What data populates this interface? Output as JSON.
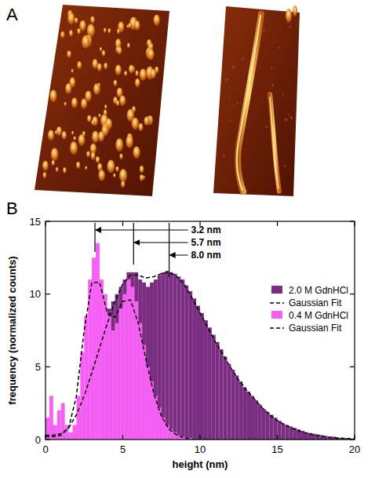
{
  "figure": {
    "panel_labels": [
      "A",
      "B"
    ]
  },
  "chart_data": {
    "type": "histogram",
    "x_label": "height (nm)",
    "y_label": "frequency (normalized counts)",
    "xlim": [
      0,
      20
    ],
    "xticks": [
      0,
      5,
      10,
      15,
      20
    ],
    "ylim": [
      0,
      15
    ],
    "yticks": [
      0,
      5,
      10,
      15
    ],
    "grid": false,
    "legend": "upper right",
    "bins": [
      0,
      0.25,
      0.5,
      0.75,
      1,
      1.25,
      1.5,
      1.75,
      2,
      2.25,
      2.5,
      2.75,
      3,
      3.25,
      3.5,
      3.75,
      4,
      4.25,
      4.5,
      4.75,
      5,
      5.25,
      5.5,
      5.75,
      6,
      6.25,
      6.5,
      6.75,
      7,
      7.25,
      7.5,
      7.75,
      8,
      8.25,
      8.5,
      8.75,
      9,
      9.25,
      9.5,
      9.75,
      10,
      10.25,
      10.5,
      10.75,
      11,
      11.25,
      11.5,
      11.75,
      12,
      12.25,
      12.5,
      12.75,
      13,
      13.25,
      13.5,
      13.75,
      14,
      14.25,
      14.5,
      14.75,
      15,
      15.25,
      15.5,
      15.75,
      16,
      16.25,
      16.5,
      16.75,
      17,
      17.25,
      17.5,
      17.75,
      18,
      18.25,
      18.5,
      18.75,
      19,
      19.25,
      19.5,
      19.75,
      20
    ],
    "series": [
      {
        "name": "2.0 M GdnHCl",
        "color": "#7b2d82",
        "values": [
          0.5,
          1,
          0.5,
          0.3,
          0.3,
          0.3,
          0.2,
          0.5,
          1,
          2,
          3,
          4,
          5,
          6,
          7,
          8,
          9,
          9.5,
          10,
          10.5,
          11,
          11.5,
          11.5,
          11.5,
          11,
          10.8,
          10.5,
          10.8,
          11,
          11.3,
          11.5,
          11.6,
          11.5,
          11.4,
          11.2,
          11,
          10.6,
          10.2,
          9.7,
          9.2,
          8.7,
          8.2,
          7.7,
          7.2,
          6.7,
          6.2,
          5.7,
          5.2,
          4.8,
          4.4,
          4,
          3.6,
          3.3,
          3,
          2.7,
          2.4,
          2.1,
          1.9,
          1.7,
          1.5,
          1.3,
          1.1,
          1,
          0.9,
          0.8,
          0.7,
          0.6,
          0.5,
          0.45,
          0.4,
          0.35,
          0.3,
          0.25,
          0.2,
          0.2,
          0.15,
          0.1,
          0.1,
          0.1,
          0.05
        ]
      },
      {
        "name": "Gaussian Fit",
        "type": "line",
        "line_style": "dashed",
        "color": "#000000",
        "x": [
          0,
          0.5,
          1,
          1.5,
          2,
          2.5,
          3,
          3.5,
          4,
          4.5,
          5,
          5.5,
          6,
          6.5,
          7,
          7.5,
          8,
          8.5,
          9,
          9.5,
          10,
          10.5,
          11,
          11.5,
          12,
          12.5,
          13,
          13.5,
          14,
          14.5,
          15,
          15.5,
          16,
          16.5,
          17,
          17.5,
          18,
          18.5,
          19,
          19.5,
          20
        ],
        "values": [
          0.3,
          0.3,
          0.4,
          0.8,
          1.7,
          3,
          4.6,
          6.3,
          8,
          9.5,
          10.7,
          11.3,
          11.3,
          11.1,
          11.2,
          11.4,
          11.5,
          11.2,
          10.6,
          9.7,
          8.7,
          7.7,
          6.7,
          5.8,
          4.9,
          4.1,
          3.4,
          2.8,
          2.2,
          1.7,
          1.3,
          1,
          0.75,
          0.55,
          0.4,
          0.28,
          0.2,
          0.14,
          0.1,
          0.07,
          0.05
        ]
      },
      {
        "name": "0.4 M GdnHCl",
        "color": "#f760f5",
        "values": [
          1.5,
          3,
          1,
          2,
          2.5,
          1,
          0.5,
          1,
          3,
          6,
          8.5,
          11,
          12.5,
          13.5,
          11,
          10,
          8.5,
          7.5,
          8,
          9,
          10,
          11,
          10.5,
          9.5,
          8,
          6.5,
          5,
          4,
          3,
          2.2,
          1.5,
          1,
          0.7,
          0.5,
          0.3,
          0.2,
          0.1,
          0.1,
          0,
          0,
          0,
          0,
          0,
          0,
          0,
          0,
          0,
          0,
          0,
          0,
          0,
          0,
          0,
          0,
          0,
          0,
          0,
          0,
          0,
          0,
          0,
          0,
          0,
          0,
          0,
          0,
          0,
          0,
          0,
          0,
          0,
          0,
          0,
          0,
          0,
          0,
          0,
          0,
          0,
          0
        ]
      },
      {
        "name": "Gaussian Fit",
        "type": "line",
        "line_style": "dashed",
        "color": "#000000",
        "x": [
          0,
          0.5,
          1,
          1.5,
          2,
          2.5,
          3,
          3.5,
          4,
          4.5,
          5,
          5.5,
          6,
          6.5,
          7,
          7.5,
          8,
          8.5,
          9,
          9.5,
          10,
          10.5,
          11,
          11.5,
          12,
          12.5,
          13,
          13.5,
          14,
          14.5,
          15,
          15.5,
          16,
          16.5,
          17,
          17.5,
          18,
          18.5,
          19,
          19.5,
          20
        ],
        "values": [
          0.2,
          0.2,
          0.3,
          0.8,
          3,
          7.5,
          10.8,
          10.8,
          8.7,
          8.4,
          9.5,
          9.6,
          8,
          5.5,
          3.2,
          1.6,
          0.7,
          0.3,
          0.1,
          0,
          0,
          0,
          0,
          0,
          0,
          0,
          0,
          0,
          0,
          0,
          0,
          0,
          0,
          0,
          0,
          0,
          0,
          0,
          0,
          0,
          0
        ]
      }
    ],
    "annotations": [
      {
        "x": 3.2,
        "text": "3.2 nm"
      },
      {
        "x": 5.7,
        "text": "5.7 nm"
      },
      {
        "x": 8.0,
        "text": "8.0 nm"
      }
    ]
  }
}
